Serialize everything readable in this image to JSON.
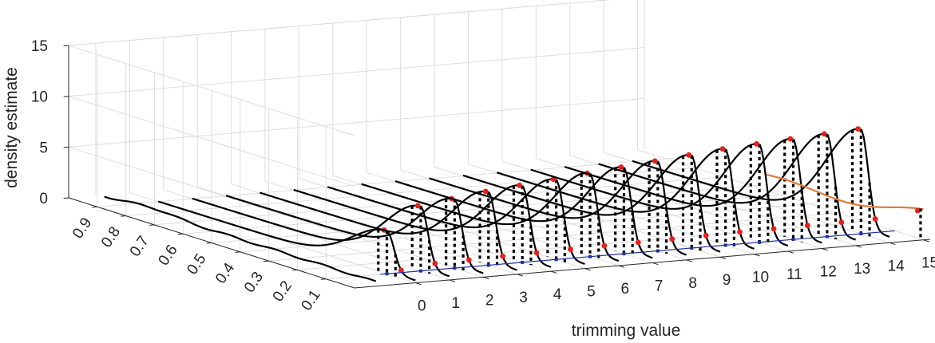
{
  "chart_data": {
    "type": "line",
    "view": "3d",
    "title": "",
    "xlabel": "trimming value",
    "ylabel": "",
    "zlabel": "density estimate",
    "x_ticks": [
      "0",
      "1",
      "2",
      "3",
      "4",
      "5",
      "6",
      "7",
      "8",
      "9",
      "10",
      "11",
      "12",
      "13",
      "14",
      "15"
    ],
    "y_ticks": [
      "0.1",
      "0.2",
      "0.3",
      "0.4",
      "0.5",
      "0.6",
      "0.7",
      "0.8",
      "0.9"
    ],
    "z_ticks": [
      "0",
      "5",
      "10",
      "15"
    ],
    "xlim": [
      -1.8,
      15.2
    ],
    "ylim": [
      0,
      1
    ],
    "zlim": [
      0,
      15
    ],
    "grid": true,
    "series": [
      {
        "x": -1,
        "style": "black",
        "peak_y": 0.09,
        "peak_z": 0.6,
        "shape": "background"
      },
      {
        "x": 0,
        "peak_y": 0.04,
        "peak_z": 4.0
      },
      {
        "x": 1,
        "peak_y": 0.04,
        "peak_z": 6.0
      },
      {
        "x": 2,
        "peak_y": 0.04,
        "peak_z": 6.4
      },
      {
        "x": 3,
        "peak_y": 0.04,
        "peak_z": 6.8
      },
      {
        "x": 4,
        "peak_y": 0.04,
        "peak_z": 7.1
      },
      {
        "x": 5,
        "peak_y": 0.04,
        "peak_z": 7.4
      },
      {
        "x": 6,
        "peak_y": 0.04,
        "peak_z": 7.7
      },
      {
        "x": 7,
        "peak_y": 0.04,
        "peak_z": 8.0
      },
      {
        "x": 8,
        "peak_y": 0.04,
        "peak_z": 8.3
      },
      {
        "x": 9,
        "peak_y": 0.04,
        "peak_z": 8.6
      },
      {
        "x": 10,
        "peak_y": 0.04,
        "peak_z": 8.9
      },
      {
        "x": 11,
        "peak_y": 0.04,
        "peak_z": 9.1
      },
      {
        "x": 12,
        "peak_y": 0.04,
        "peak_z": 9.3
      },
      {
        "x": 13,
        "peak_y": 0.04,
        "peak_z": 9.5
      },
      {
        "x": 14,
        "peak_y": 0.04,
        "peak_z": 9.7
      },
      {
        "x": 15,
        "style": "orange",
        "peak_y": 0.04,
        "peak_z": 3.0,
        "shape": "flat"
      }
    ],
    "colors": {
      "curve": "#000000",
      "marker": "#e8201a",
      "last_curve": "#e07a3c",
      "baseline": "#1f2f9a",
      "grid": "#dedede",
      "axis": "#262626"
    }
  }
}
